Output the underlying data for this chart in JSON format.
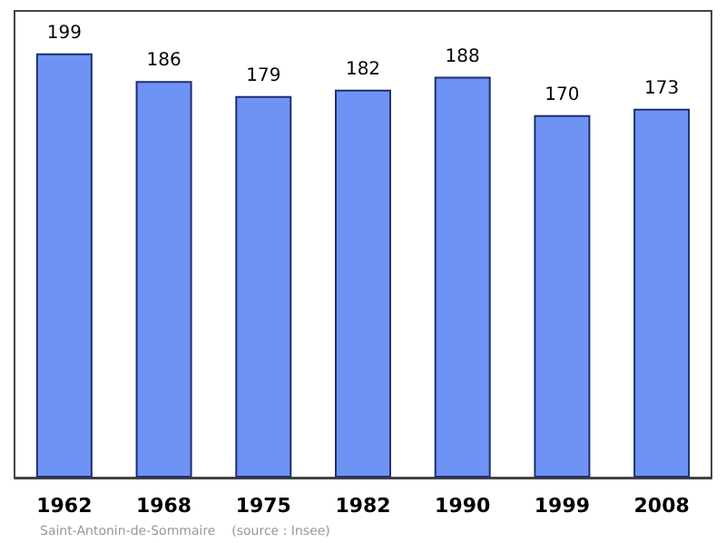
{
  "chart_data": {
    "type": "bar",
    "categories": [
      "1962",
      "1968",
      "1975",
      "1982",
      "1990",
      "1999",
      "2008"
    ],
    "values": [
      199,
      186,
      179,
      182,
      188,
      170,
      173
    ],
    "color": "#6f93f4",
    "data_labels": true,
    "annotations": [
      "Saint-Antonin-de-Sommaire    (source : Insee)"
    ]
  }
}
